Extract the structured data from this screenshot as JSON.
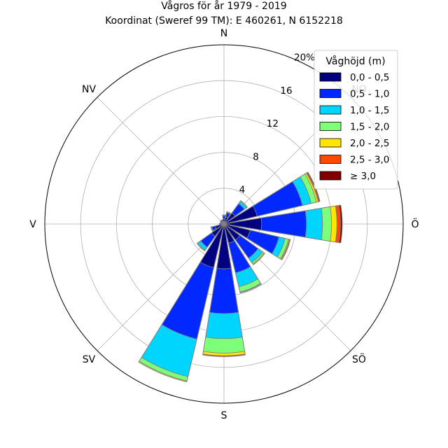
{
  "chart_data": {
    "type": "windrose",
    "title": "Vågros för år 1979 - 2019",
    "subtitle": "Koordinat (Sweref 99 TM): E 460261, N 6152218",
    "r_unit": "%",
    "rmax": 20,
    "rticks": [
      {
        "value": 4,
        "label": "4"
      },
      {
        "value": 8,
        "label": "8"
      },
      {
        "value": 12,
        "label": "12"
      },
      {
        "value": 16,
        "label": "16"
      },
      {
        "value": 20,
        "label": "20%"
      }
    ],
    "direction_labels": [
      {
        "angle": 0,
        "label": "N"
      },
      {
        "angle": 45,
        "label": "NO"
      },
      {
        "angle": 90,
        "label": "Ö"
      },
      {
        "angle": 135,
        "label": "SÖ"
      },
      {
        "angle": 180,
        "label": "S"
      },
      {
        "angle": 225,
        "label": "SV"
      },
      {
        "angle": 270,
        "label": "V"
      },
      {
        "angle": 315,
        "label": "NV"
      }
    ],
    "legend": {
      "title": "Våghöjd (m)",
      "position": "top-right"
    },
    "bins": [
      {
        "label": "0,0 - 0,5",
        "color": "#000080"
      },
      {
        "label": "0,5 - 1,0",
        "color": "#0028ff"
      },
      {
        "label": "1,0 - 1,5",
        "color": "#00d5ff"
      },
      {
        "label": "1,5 - 2,0",
        "color": "#7dff7a"
      },
      {
        "label": "2,0 - 2,5",
        "color": "#ffe600"
      },
      {
        "label": "2,5 - 3,0",
        "color": "#ff4800"
      },
      {
        "label": "≥ 3,0",
        "color": "#800000"
      }
    ],
    "directions": [
      0,
      22.5,
      45,
      67.5,
      90,
      112.5,
      135,
      157.5,
      180,
      202.5,
      225,
      247.5,
      270,
      292.5,
      315,
      337.5
    ],
    "cumulative": [
      [
        0.6,
        0.9,
        1.0,
        1.0,
        1.0,
        1.0,
        1.0
      ],
      [
        0.8,
        1.3,
        1.4,
        1.4,
        1.4,
        1.4,
        1.4
      ],
      [
        1.5,
        2.8,
        3.1,
        3.2,
        3.2,
        3.2,
        3.2
      ],
      [
        3.8,
        9.0,
        10.0,
        10.6,
        10.8,
        10.9,
        11.0
      ],
      [
        4.2,
        9.2,
        11.0,
        12.0,
        12.6,
        13.0,
        13.2
      ],
      [
        3.0,
        6.3,
        7.0,
        7.4,
        7.5,
        7.6,
        7.6
      ],
      [
        2.2,
        4.7,
        5.3,
        5.5,
        5.6,
        5.6,
        5.6
      ],
      [
        2.2,
        5.6,
        7.2,
        7.8,
        7.85,
        7.9,
        7.9
      ],
      [
        5.0,
        10.0,
        12.8,
        14.4,
        14.7,
        14.8,
        14.8
      ],
      [
        5.0,
        13.2,
        17.5,
        18.0,
        18.1,
        18.1,
        18.1
      ],
      [
        1.7,
        3.2,
        3.6,
        3.7,
        3.7,
        3.7,
        3.7
      ],
      [
        1.0,
        1.4,
        1.5,
        1.5,
        1.5,
        1.5,
        1.5
      ],
      [
        0.3,
        0.5,
        0.5,
        0.5,
        0.5,
        0.5,
        0.5
      ],
      [
        0.3,
        0.4,
        0.4,
        0.4,
        0.4,
        0.4,
        0.4
      ],
      [
        0.3,
        0.5,
        0.5,
        0.5,
        0.5,
        0.5,
        0.5
      ],
      [
        0.3,
        0.5,
        0.5,
        0.5,
        0.5,
        0.5,
        0.5
      ]
    ]
  }
}
